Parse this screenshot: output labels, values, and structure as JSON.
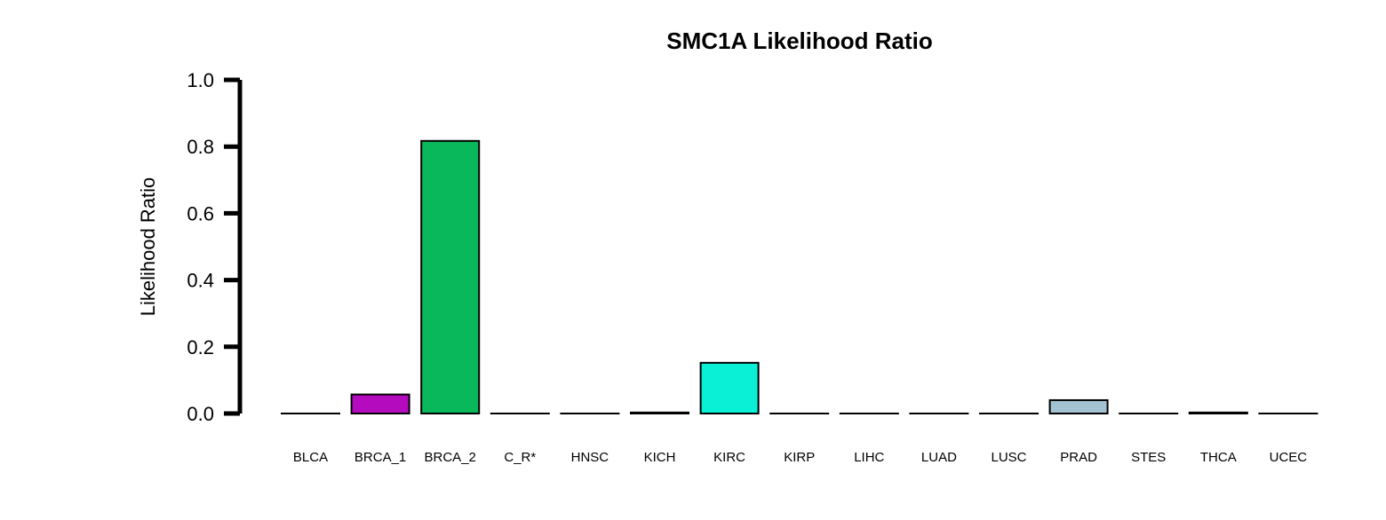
{
  "chart_data": {
    "type": "bar",
    "title": "SMC1A Likelihood Ratio",
    "ylabel": "Likelihood Ratio",
    "xlabel": "",
    "ylim": [
      0,
      1.0
    ],
    "yticks": [
      "0.0",
      "0.2",
      "0.4",
      "0.6",
      "0.8",
      "1.0"
    ],
    "grid": false,
    "categories": [
      "BLCA",
      "BRCA_1",
      "BRCA_2",
      "C_R*",
      "HNSC",
      "KICH",
      "KIRC",
      "KIRP",
      "LIHC",
      "LUAD",
      "LUSC",
      "PRAD",
      "STES",
      "THCA",
      "UCEC"
    ],
    "values": [
      0.0,
      0.057,
      0.817,
      0.0,
      0.0,
      0.003,
      0.152,
      0.0,
      0.0,
      0.0,
      0.0,
      0.04,
      0.0,
      0.003,
      0.0
    ],
    "colors": [
      "#ffffff",
      "#b40bbf",
      "#08b85a",
      "#ffffff",
      "#ffffff",
      "#ffffff",
      "#0af0d6",
      "#ffffff",
      "#ffffff",
      "#ffffff",
      "#ffffff",
      "#a3c3d3",
      "#ffffff",
      "#ffffff",
      "#ffffff"
    ]
  }
}
